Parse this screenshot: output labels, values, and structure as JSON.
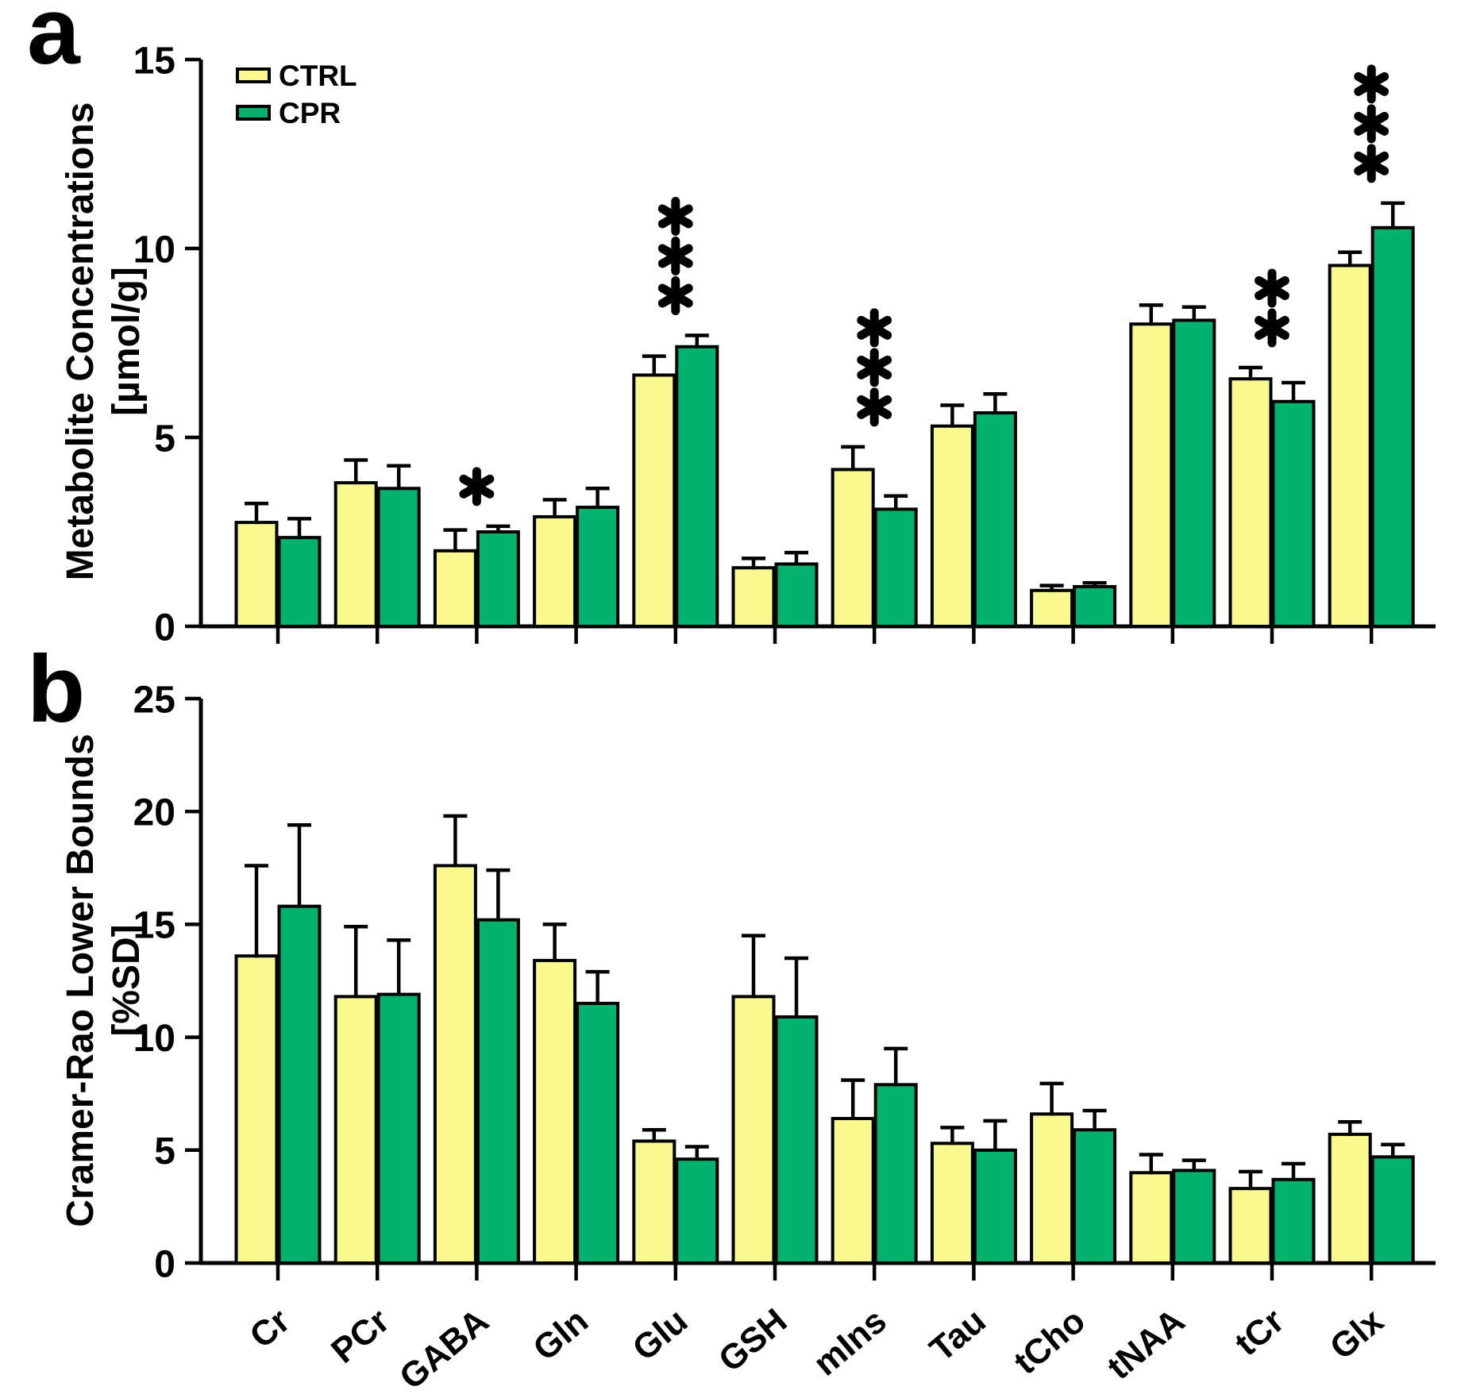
{
  "figure": {
    "panel_a_letter": "a",
    "panel_b_letter": "b"
  },
  "legend": {
    "ctrl_label": "CTRL",
    "cpr_label": "CPR"
  },
  "colors": {
    "ctrl": "#F9F98F",
    "cpr": "#00B26E",
    "axis": "#000000",
    "background": "#FFFFFF"
  },
  "chart_data": [
    {
      "type": "bar",
      "panel": "a",
      "ylabel": "Metabolite Concentrations [µmol/g]",
      "ylabel_line1": "Metabolite Concentrations",
      "ylabel_line2": "[µmol/g]",
      "categories": [
        "Cr",
        "PCr",
        "GABA",
        "Gln",
        "Glu",
        "GSH",
        "mIns",
        "Tau",
        "tCho",
        "tNAA",
        "tCr",
        "Glx"
      ],
      "series": [
        {
          "name": "CTRL",
          "values": [
            2.75,
            3.8,
            2.0,
            2.9,
            6.65,
            1.55,
            4.15,
            5.3,
            0.95,
            8.0,
            6.55,
            9.55
          ],
          "errors": [
            0.5,
            0.6,
            0.55,
            0.45,
            0.5,
            0.25,
            0.6,
            0.55,
            0.13,
            0.5,
            0.3,
            0.35
          ]
        },
        {
          "name": "CPR",
          "values": [
            2.35,
            3.65,
            2.5,
            3.15,
            7.4,
            1.65,
            3.1,
            5.65,
            1.05,
            8.1,
            5.95,
            10.55
          ],
          "errors": [
            0.5,
            0.6,
            0.15,
            0.5,
            0.3,
            0.3,
            0.35,
            0.5,
            0.1,
            0.35,
            0.5,
            0.65
          ]
        }
      ],
      "significance": [
        "",
        "",
        "*",
        "",
        "***",
        "",
        "***",
        "",
        "",
        "",
        "**",
        "***"
      ],
      "ylim": [
        0,
        15
      ],
      "yticks": [
        0,
        5,
        10,
        15
      ],
      "grid": false,
      "legend_position": "top-left-inside",
      "error_bars": "upper-SD"
    },
    {
      "type": "bar",
      "panel": "b",
      "ylabel": "Cramer-Rao Lower Bounds [%SD]",
      "ylabel_line1": "Cramer-Rao Lower Bounds",
      "ylabel_line2": "[%SD]",
      "categories": [
        "Cr",
        "PCr",
        "GABA",
        "Gln",
        "Glu",
        "GSH",
        "mIns",
        "Tau",
        "tCho",
        "tNAA",
        "tCr",
        "Glx"
      ],
      "series": [
        {
          "name": "CTRL",
          "values": [
            13.6,
            11.8,
            17.6,
            13.4,
            5.4,
            11.8,
            6.4,
            5.3,
            6.6,
            4.0,
            3.3,
            5.7
          ],
          "errors": [
            4.0,
            3.1,
            2.2,
            1.6,
            0.5,
            2.7,
            1.7,
            0.7,
            1.35,
            0.8,
            0.75,
            0.55
          ]
        },
        {
          "name": "CPR",
          "values": [
            15.8,
            11.9,
            15.2,
            11.5,
            4.6,
            10.9,
            7.9,
            5.0,
            5.9,
            4.1,
            3.7,
            4.7
          ],
          "errors": [
            3.6,
            2.4,
            2.2,
            1.4,
            0.55,
            2.6,
            1.6,
            1.3,
            0.85,
            0.45,
            0.7,
            0.55
          ]
        }
      ],
      "significance": [
        "",
        "",
        "",
        "",
        "",
        "",
        "",
        "",
        "",
        "",
        "",
        ""
      ],
      "ylim": [
        0,
        25
      ],
      "yticks": [
        0,
        5,
        10,
        15,
        20,
        25
      ],
      "grid": false,
      "legend_position": "none",
      "error_bars": "upper-SD"
    }
  ]
}
